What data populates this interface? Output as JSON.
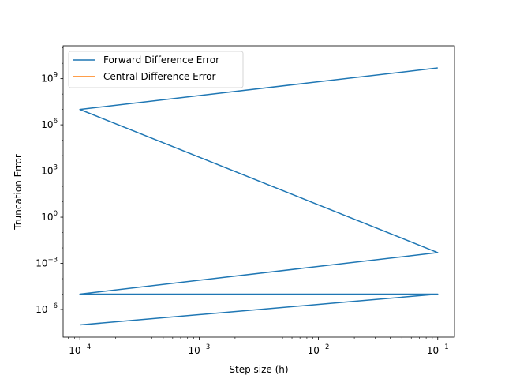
{
  "chart_data": {
    "type": "line",
    "title": "",
    "xlabel": "Step size (h)",
    "ylabel": "Truncation Error",
    "x_scale": "log",
    "y_scale": "log",
    "xlim": [
      7.24e-05,
      0.1382
    ],
    "ylim": [
      1.6e-08,
      137000000000.0
    ],
    "grid": false,
    "legend_position": "upper-left",
    "x_ticks": [
      {
        "value": 0.0001,
        "base": "10",
        "exp": "−4"
      },
      {
        "value": 0.001,
        "base": "10",
        "exp": "−3"
      },
      {
        "value": 0.01,
        "base": "10",
        "exp": "−2"
      },
      {
        "value": 0.1,
        "base": "10",
        "exp": "−1"
      }
    ],
    "y_ticks": [
      {
        "value": 1e-06,
        "base": "10",
        "exp": "−6"
      },
      {
        "value": 0.001,
        "base": "10",
        "exp": "−3"
      },
      {
        "value": 1,
        "base": "10",
        "exp": "0"
      },
      {
        "value": 1000,
        "base": "10",
        "exp": "3"
      },
      {
        "value": 1000000,
        "base": "10",
        "exp": "6"
      },
      {
        "value": 1000000000,
        "base": "10",
        "exp": "9"
      }
    ],
    "series": [
      {
        "name": "Forward Difference Error",
        "color": "#1f77b4",
        "x": [
          0.0001,
          0.1,
          0.0001,
          0.1,
          0.0001,
          0.1
        ],
        "y": [
          1e-07,
          1e-05,
          1e-05,
          0.005,
          10000000,
          5000000000
        ]
      },
      {
        "name": "Central Difference Error",
        "color": "#ff7f0e",
        "x": [],
        "y": []
      }
    ]
  }
}
